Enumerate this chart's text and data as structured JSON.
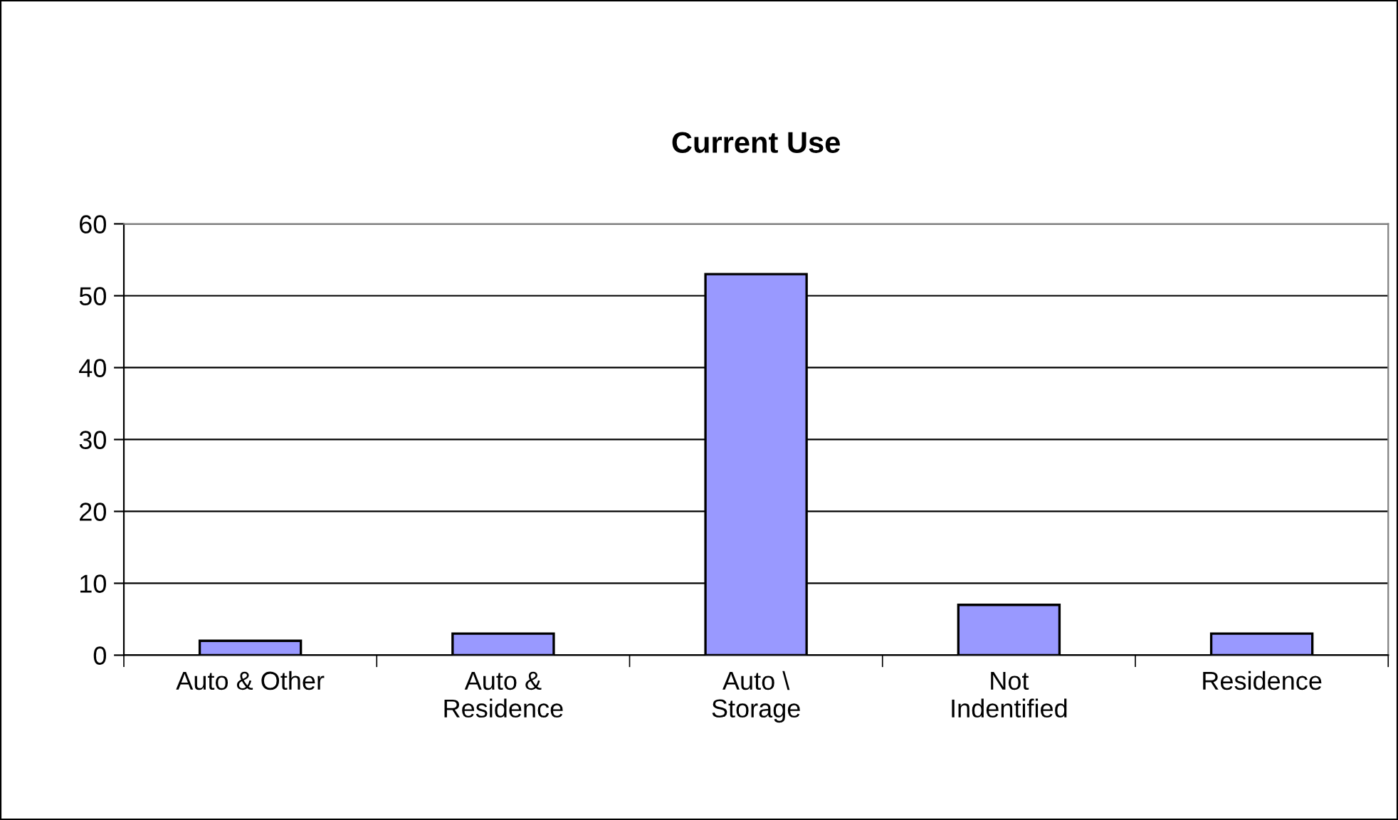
{
  "chart_data": {
    "type": "bar",
    "title": "Current Use",
    "categories": [
      "Auto & Other",
      "Auto &\nResidence",
      "Auto \\\nStorage",
      "Not\nIndentified",
      "Residence"
    ],
    "values": [
      2,
      3,
      53,
      7,
      3
    ],
    "color": "#9999ff",
    "ylim": [
      0,
      60
    ],
    "yticks": [
      0,
      10,
      20,
      30,
      40,
      50,
      60
    ],
    "grid": "y",
    "legend": false
  }
}
